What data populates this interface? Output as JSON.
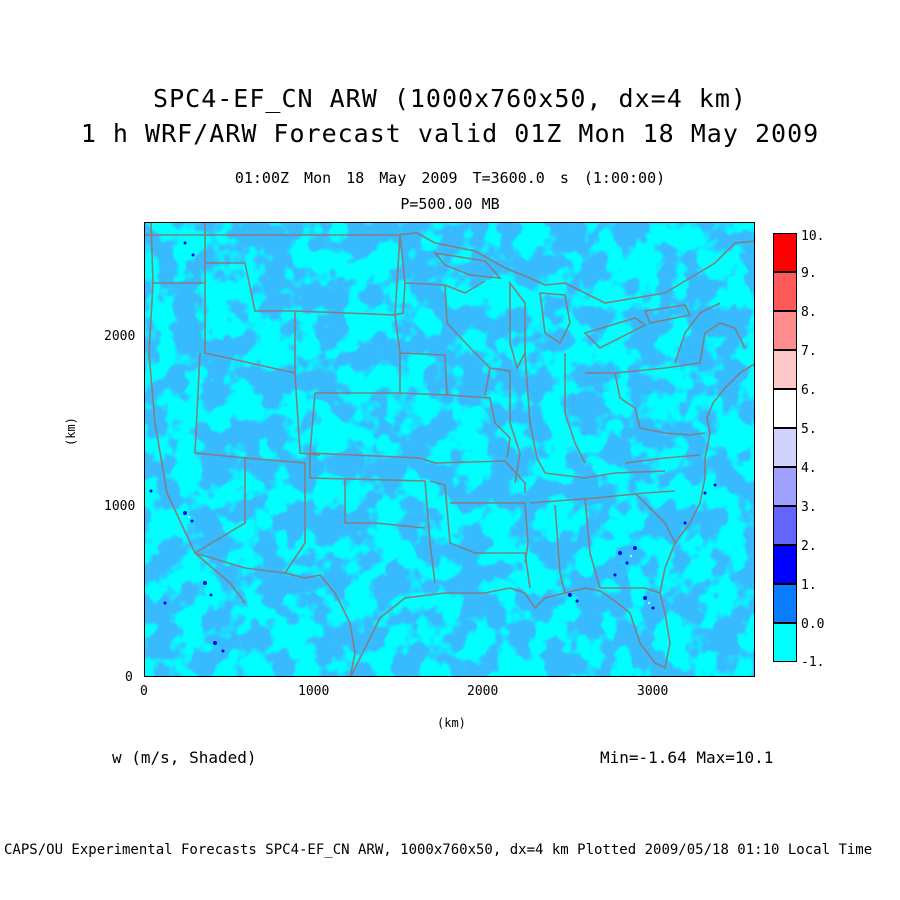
{
  "title_line1": "SPC4-EF_CN ARW (1000x760x50, dx=4 km)",
  "title_line2": "1 h WRF/ARW Forecast valid 01Z Mon 18 May 2009",
  "valid_time_line": "01:00Z Mon 18 May 2009    T=3600.0 s (1:00:00)",
  "level_line": "P=500.00 MB",
  "map": {
    "x_axis_label": "(km)",
    "y_axis_label": "(km)",
    "x_ticks": [
      "0",
      "1000",
      "2000",
      "3000"
    ],
    "y_ticks": [
      "0",
      "1000",
      "2000"
    ],
    "x_range": [
      0,
      3600
    ],
    "y_range": [
      0,
      2680
    ],
    "field": "w vertical velocity",
    "background_color": "#00ffff",
    "shade_color": "#0a7cff",
    "boundary_color": "#808080"
  },
  "colorbar": {
    "levels": [
      {
        "label": "10.",
        "color": "#ff0000"
      },
      {
        "label": "9.",
        "color": "#ff5a5a"
      },
      {
        "label": "8.",
        "color": "#ff8c8c"
      },
      {
        "label": "7.",
        "color": "#ffc8c8"
      },
      {
        "label": "6.",
        "color": "#ffffff"
      },
      {
        "label": "5.",
        "color": "#d2d2ff"
      },
      {
        "label": "4.",
        "color": "#a0a0ff"
      },
      {
        "label": "3.",
        "color": "#6464ff"
      },
      {
        "label": "2.",
        "color": "#0000ff"
      },
      {
        "label": "1.",
        "color": "#0a7cff"
      },
      {
        "label": "0.0",
        "color": "#00ffff"
      },
      {
        "label": "-1.",
        "color": null
      }
    ]
  },
  "variable_label": "w (m/s, Shaded)",
  "min_max": "Min=-1.64 Max=10.1",
  "credit_line": "CAPS/OU Experimental Forecasts  SPC4-EF_CN ARW, 1000x760x50, dx=4 km  Plotted 2009/05/18 01:10 Local Time"
}
